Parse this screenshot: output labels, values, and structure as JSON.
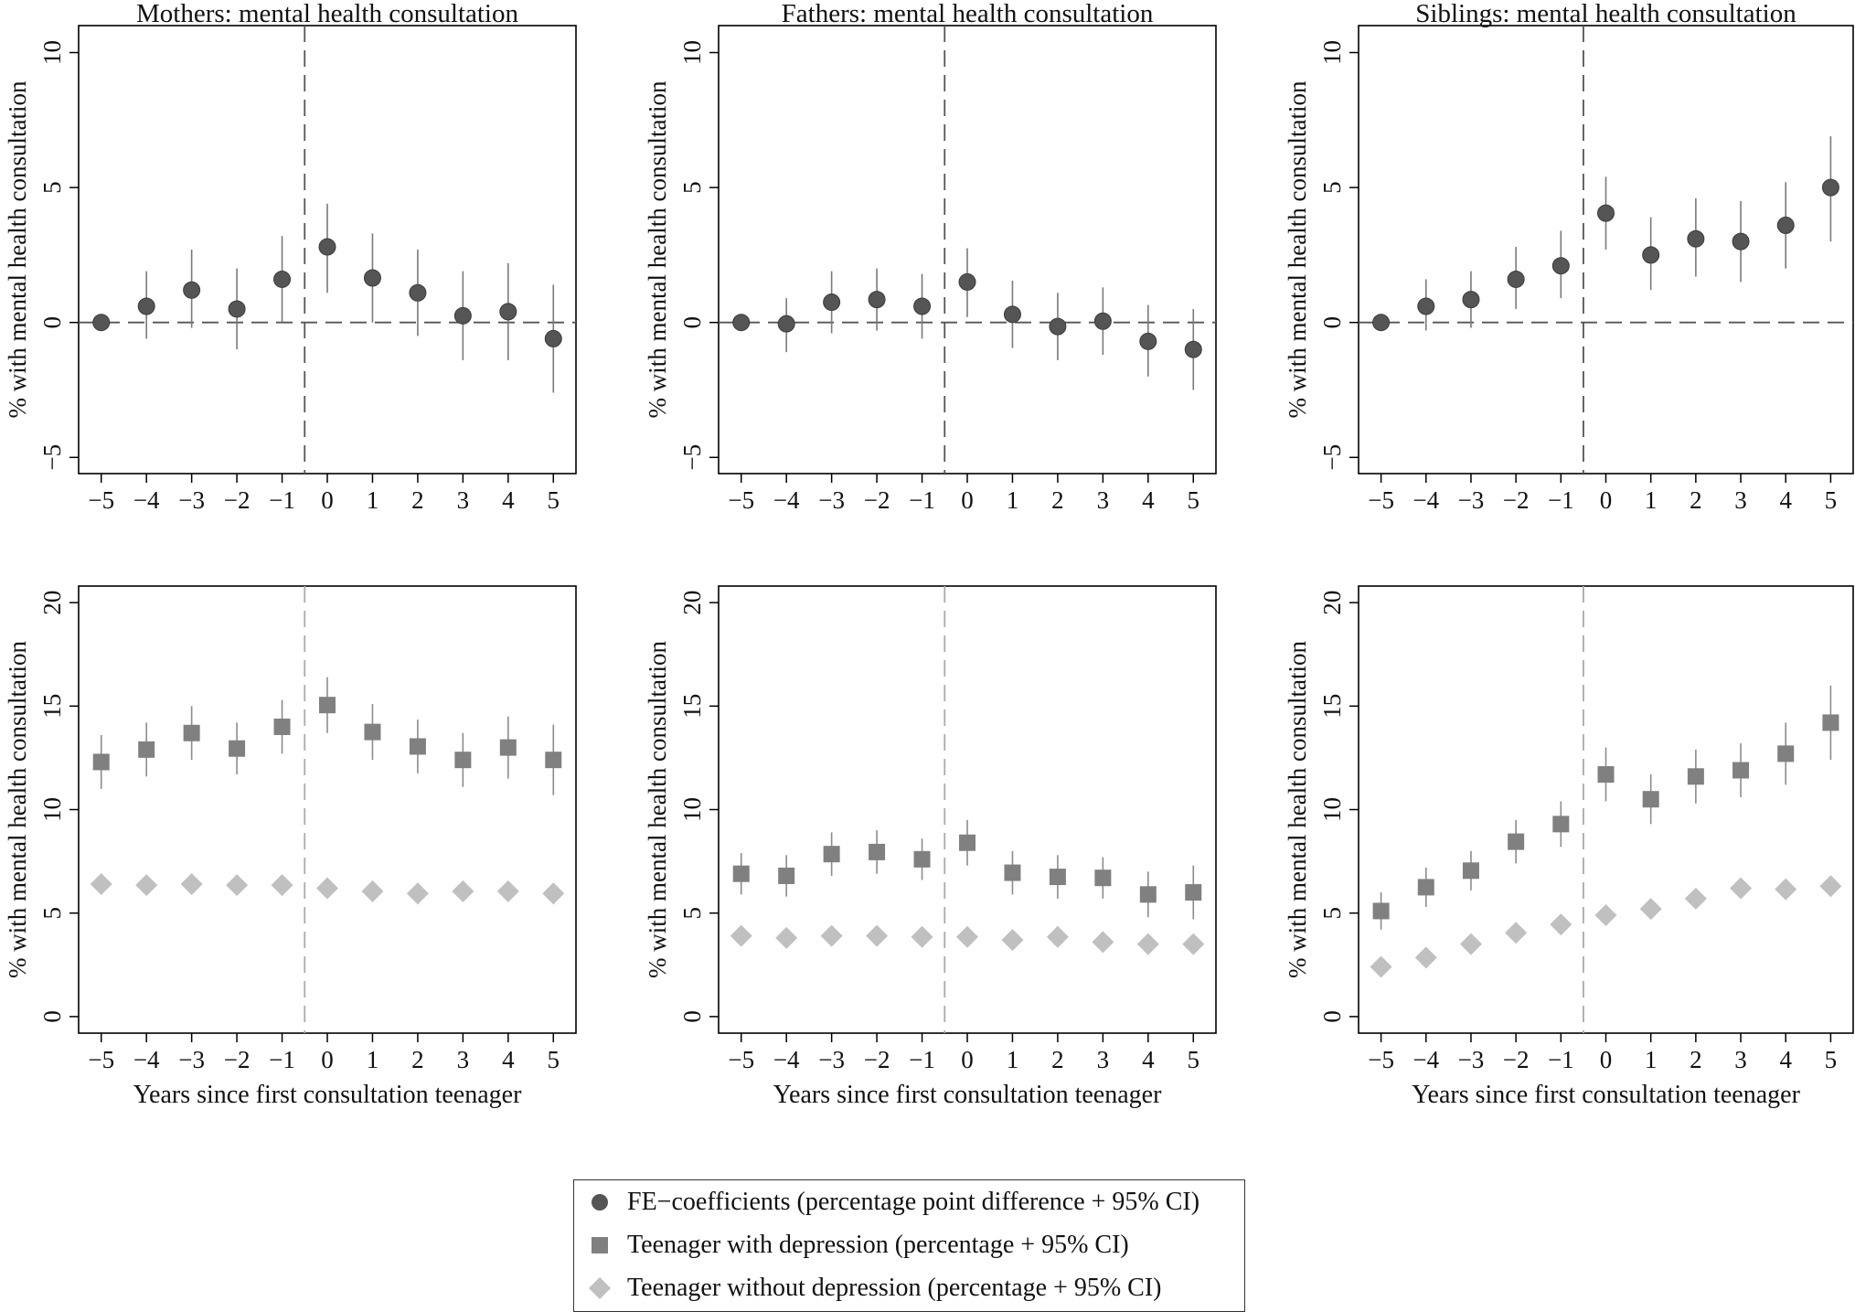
{
  "chart_data": [
    {
      "type": "scatter",
      "title": "Mothers: mental health consultation",
      "xlabel": "",
      "ylabel": "% with mental health consultation",
      "x": [
        -5,
        -4,
        -3,
        -2,
        -1,
        0,
        1,
        2,
        3,
        4,
        5
      ],
      "xticks": [
        "−5",
        "−4",
        "−3",
        "−2",
        "−1",
        "0",
        "1",
        "2",
        "3",
        "4",
        "5"
      ],
      "yticks": [
        "−5",
        "0",
        "5",
        "10"
      ],
      "ytick_values": [
        -5,
        0,
        5,
        10
      ],
      "ylim": [
        -5.6,
        11
      ],
      "hline": 0,
      "vline": -0.5,
      "series": [
        {
          "name": "FE−coefficients",
          "marker": "circle",
          "values": [
            0.0,
            0.6,
            1.2,
            0.5,
            1.6,
            2.8,
            1.65,
            1.1,
            0.25,
            0.4,
            -0.6
          ],
          "ci_low": [
            0.0,
            -0.6,
            -0.2,
            -1.0,
            0.0,
            1.1,
            0.0,
            -0.5,
            -1.4,
            -1.4,
            -2.6
          ],
          "ci_high": [
            0.0,
            1.9,
            2.7,
            2.0,
            3.2,
            4.4,
            3.3,
            2.7,
            1.9,
            2.2,
            1.4
          ]
        }
      ]
    },
    {
      "type": "scatter",
      "title": "Fathers: mental health consultation",
      "xlabel": "",
      "ylabel": "% with mental health consultation",
      "x": [
        -5,
        -4,
        -3,
        -2,
        -1,
        0,
        1,
        2,
        3,
        4,
        5
      ],
      "xticks": [
        "−5",
        "−4",
        "−3",
        "−2",
        "−1",
        "0",
        "1",
        "2",
        "3",
        "4",
        "5"
      ],
      "yticks": [
        "−5",
        "0",
        "5",
        "10"
      ],
      "ytick_values": [
        -5,
        0,
        5,
        10
      ],
      "ylim": [
        -5.6,
        11
      ],
      "hline": 0,
      "vline": -0.5,
      "series": [
        {
          "name": "FE−coefficients",
          "marker": "circle",
          "values": [
            0.0,
            -0.05,
            0.75,
            0.85,
            0.6,
            1.5,
            0.3,
            -0.15,
            0.05,
            -0.7,
            -1.0
          ],
          "ci_low": [
            0.0,
            -1.1,
            -0.4,
            -0.3,
            -0.6,
            0.2,
            -0.95,
            -1.4,
            -1.2,
            -2.0,
            -2.5
          ],
          "ci_high": [
            0.0,
            0.9,
            1.9,
            2.0,
            1.8,
            2.75,
            1.55,
            1.1,
            1.3,
            0.65,
            0.5
          ]
        }
      ]
    },
    {
      "type": "scatter",
      "title": "Siblings: mental health consultation",
      "xlabel": "",
      "ylabel": "% with mental health consultation",
      "x": [
        -5,
        -4,
        -3,
        -2,
        -1,
        0,
        1,
        2,
        3,
        4,
        5
      ],
      "xticks": [
        "−5",
        "−4",
        "−3",
        "−2",
        "−1",
        "0",
        "1",
        "2",
        "3",
        "4",
        "5"
      ],
      "yticks": [
        "−5",
        "0",
        "5",
        "10"
      ],
      "ytick_values": [
        -5,
        0,
        5,
        10
      ],
      "ylim": [
        -5.6,
        11
      ],
      "hline": 0,
      "vline": -0.5,
      "series": [
        {
          "name": "FE−coefficients",
          "marker": "circle",
          "values": [
            0.0,
            0.6,
            0.85,
            1.6,
            2.1,
            4.05,
            2.5,
            3.1,
            3.0,
            3.6,
            5.0
          ],
          "ci_low": [
            0.0,
            -0.3,
            -0.2,
            0.5,
            0.9,
            2.7,
            1.2,
            1.7,
            1.5,
            2.0,
            3.0
          ],
          "ci_high": [
            0.0,
            1.6,
            1.9,
            2.8,
            3.4,
            5.4,
            3.9,
            4.6,
            4.5,
            5.2,
            6.9
          ]
        }
      ]
    },
    {
      "type": "scatter",
      "title": "",
      "xlabel": "Years since first consultation teenager",
      "ylabel": "% with mental health consultation",
      "x": [
        -5,
        -4,
        -3,
        -2,
        -1,
        0,
        1,
        2,
        3,
        4,
        5
      ],
      "xticks": [
        "−5",
        "−4",
        "−3",
        "−2",
        "−1",
        "0",
        "1",
        "2",
        "3",
        "4",
        "5"
      ],
      "yticks": [
        "0",
        "5",
        "10",
        "15",
        "20"
      ],
      "ytick_values": [
        0,
        5,
        10,
        15,
        20
      ],
      "ylim": [
        -0.8,
        20.8
      ],
      "vline": -0.5,
      "series": [
        {
          "name": "Teenager with depression",
          "marker": "square",
          "values": [
            12.3,
            12.9,
            13.7,
            12.95,
            14.0,
            15.05,
            13.75,
            13.05,
            12.4,
            13.0,
            12.4
          ],
          "ci_low": [
            11.0,
            11.6,
            12.4,
            11.7,
            12.7,
            13.7,
            12.4,
            11.75,
            11.1,
            11.5,
            10.7
          ],
          "ci_high": [
            13.6,
            14.2,
            15.0,
            14.2,
            15.3,
            16.4,
            15.1,
            14.35,
            13.7,
            14.5,
            14.1
          ]
        },
        {
          "name": "Teenager without depression",
          "marker": "diamond",
          "values": [
            6.4,
            6.35,
            6.4,
            6.35,
            6.35,
            6.2,
            6.05,
            5.95,
            6.05,
            6.05,
            5.95
          ],
          "ci_low": [
            6.3,
            6.25,
            6.3,
            6.25,
            6.25,
            6.1,
            5.95,
            5.85,
            5.95,
            5.95,
            5.85
          ],
          "ci_high": [
            6.5,
            6.45,
            6.5,
            6.45,
            6.45,
            6.3,
            6.15,
            6.05,
            6.15,
            6.15,
            6.05
          ]
        }
      ]
    },
    {
      "type": "scatter",
      "title": "",
      "xlabel": "Years since first consultation teenager",
      "ylabel": "% with mental health consultation",
      "x": [
        -5,
        -4,
        -3,
        -2,
        -1,
        0,
        1,
        2,
        3,
        4,
        5
      ],
      "xticks": [
        "−5",
        "−4",
        "−3",
        "−2",
        "−1",
        "0",
        "1",
        "2",
        "3",
        "4",
        "5"
      ],
      "yticks": [
        "0",
        "5",
        "10",
        "15",
        "20"
      ],
      "ytick_values": [
        0,
        5,
        10,
        15,
        20
      ],
      "ylim": [
        -0.8,
        20.8
      ],
      "vline": -0.5,
      "series": [
        {
          "name": "Teenager with depression",
          "marker": "square",
          "values": [
            6.9,
            6.8,
            7.85,
            7.95,
            7.6,
            8.4,
            6.95,
            6.75,
            6.7,
            5.9,
            6.0
          ],
          "ci_low": [
            5.9,
            5.8,
            6.8,
            6.9,
            6.6,
            7.3,
            5.9,
            5.7,
            5.7,
            4.8,
            4.7
          ],
          "ci_high": [
            7.9,
            7.8,
            8.9,
            9.0,
            8.6,
            9.5,
            8.0,
            7.8,
            7.7,
            7.0,
            7.3
          ]
        },
        {
          "name": "Teenager without depression",
          "marker": "diamond",
          "values": [
            3.9,
            3.8,
            3.9,
            3.9,
            3.85,
            3.85,
            3.7,
            3.85,
            3.6,
            3.5,
            3.5
          ],
          "ci_low": [
            3.8,
            3.7,
            3.8,
            3.8,
            3.75,
            3.75,
            3.6,
            3.75,
            3.5,
            3.4,
            3.4
          ],
          "ci_high": [
            4.0,
            3.9,
            4.0,
            4.0,
            3.95,
            3.95,
            3.8,
            3.95,
            3.7,
            3.6,
            3.6
          ]
        }
      ]
    },
    {
      "type": "scatter",
      "title": "",
      "xlabel": "Years since first consultation teenager",
      "ylabel": "% with mental health consultation",
      "x": [
        -5,
        -4,
        -3,
        -2,
        -1,
        0,
        1,
        2,
        3,
        4,
        5
      ],
      "xticks": [
        "−5",
        "−4",
        "−3",
        "−2",
        "−1",
        "0",
        "1",
        "2",
        "3",
        "4",
        "5"
      ],
      "yticks": [
        "0",
        "5",
        "10",
        "15",
        "20"
      ],
      "ytick_values": [
        0,
        5,
        10,
        15,
        20
      ],
      "ylim": [
        -0.8,
        20.8
      ],
      "vline": -0.5,
      "series": [
        {
          "name": "Teenager with depression",
          "marker": "square",
          "values": [
            5.1,
            6.25,
            7.05,
            8.45,
            9.3,
            11.7,
            10.5,
            11.6,
            11.9,
            12.7,
            14.2
          ],
          "ci_low": [
            4.2,
            5.3,
            6.1,
            7.4,
            8.2,
            10.4,
            9.3,
            10.3,
            10.6,
            11.2,
            12.4
          ],
          "ci_high": [
            6.0,
            7.2,
            8.0,
            9.5,
            10.4,
            13.0,
            11.7,
            12.9,
            13.2,
            14.2,
            16.0
          ]
        },
        {
          "name": "Teenager without depression",
          "marker": "diamond",
          "values": [
            2.4,
            2.85,
            3.5,
            4.05,
            4.45,
            4.9,
            5.2,
            5.7,
            6.2,
            6.15,
            6.3
          ],
          "ci_low": [
            2.3,
            2.75,
            3.4,
            3.95,
            4.35,
            4.8,
            5.1,
            5.6,
            6.1,
            6.05,
            6.2
          ],
          "ci_high": [
            2.5,
            2.95,
            3.6,
            4.15,
            4.55,
            5.0,
            5.3,
            5.8,
            6.3,
            6.25,
            6.4
          ]
        }
      ]
    }
  ],
  "legend": {
    "items": [
      {
        "label": "FE−coefficients (percentage point difference + 95% CI)",
        "marker": "circle",
        "color": "#555555"
      },
      {
        "label": "Teenager with depression (percentage + 95% CI)",
        "marker": "square",
        "color": "#808080"
      },
      {
        "label": "Teenager without depression (percentage + 95% CI)",
        "marker": "diamond",
        "color": "#c0c0c0"
      }
    ]
  },
  "colors": {
    "fe": "#555555",
    "fe_ci": "#7a7a7a",
    "depressed": "#808080",
    "depressed_ci": "#8c8c8c",
    "non_depressed": "#c0c0c0",
    "dashed_line": "#555555",
    "vline_light": "#aaaaaa",
    "axis": "#000000",
    "text": "#111111"
  }
}
